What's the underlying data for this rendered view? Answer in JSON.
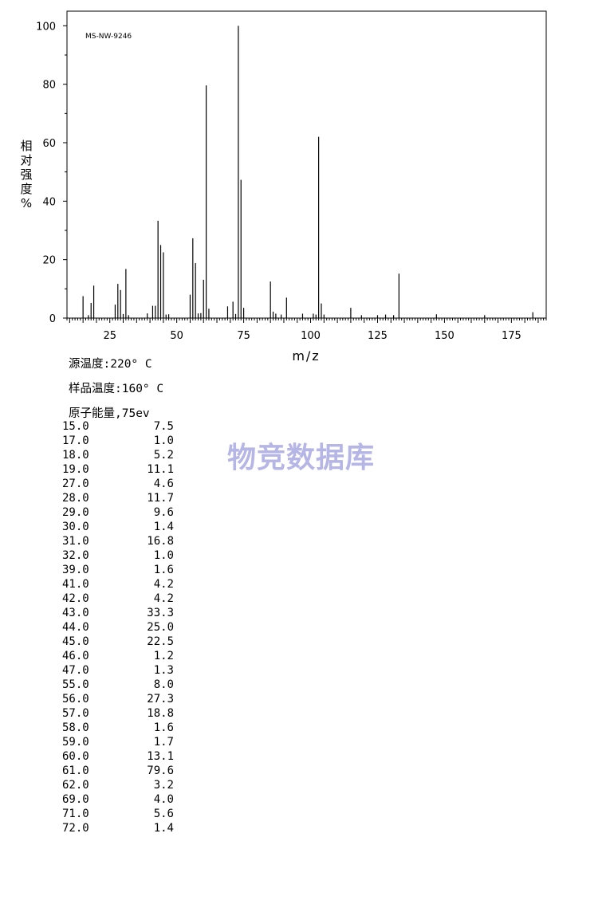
{
  "chart_data": {
    "type": "bar",
    "annotation": "MS-NW-9246",
    "xlabel": "m/z",
    "ylabel": "相对强度%",
    "xlim": [
      9,
      188
    ],
    "ylim": [
      0,
      105
    ],
    "xticks": [
      25,
      50,
      75,
      100,
      125,
      150,
      175
    ],
    "yticks": [
      0,
      20,
      40,
      60,
      80,
      100
    ],
    "grid": false,
    "series": [
      {
        "x": [
          15,
          17,
          18,
          19,
          27,
          28,
          29,
          30,
          31,
          32,
          39,
          41,
          42,
          43,
          44,
          45,
          46,
          47,
          55,
          56,
          57,
          58,
          59,
          60,
          61,
          62,
          69,
          71,
          72,
          73,
          74,
          75,
          85,
          86,
          87,
          89,
          91,
          97,
          101,
          102,
          103,
          104,
          105,
          115,
          119,
          125,
          128,
          131,
          133,
          147,
          165,
          183
        ],
        "values": [
          7.5,
          1.0,
          5.2,
          11.1,
          4.6,
          11.7,
          9.6,
          1.4,
          16.8,
          1.0,
          1.6,
          4.2,
          4.2,
          33.3,
          25.0,
          22.5,
          1.2,
          1.3,
          8.0,
          27.3,
          18.8,
          1.6,
          1.7,
          13.1,
          79.6,
          3.2,
          4.0,
          5.6,
          1.4,
          100.0,
          47.3,
          3.5,
          12.5,
          2.2,
          1.5,
          1.2,
          7.0,
          1.5,
          1.5,
          1.2,
          62.0,
          5.0,
          1.2,
          3.5,
          1.0,
          1.0,
          1.2,
          1.0,
          15.2,
          1.3,
          1.0,
          2.0
        ]
      }
    ]
  },
  "conditions": {
    "source_temp": "源温度:220° C",
    "sample_temp": "样品温度:160° C",
    "electron_energy": "原子能量,75ev"
  },
  "peak_table": [
    {
      "mz": "15.0",
      "abundance": "7.5"
    },
    {
      "mz": "17.0",
      "abundance": "1.0"
    },
    {
      "mz": "18.0",
      "abundance": "5.2"
    },
    {
      "mz": "19.0",
      "abundance": "11.1"
    },
    {
      "mz": "27.0",
      "abundance": "4.6"
    },
    {
      "mz": "28.0",
      "abundance": "11.7"
    },
    {
      "mz": "29.0",
      "abundance": "9.6"
    },
    {
      "mz": "30.0",
      "abundance": "1.4"
    },
    {
      "mz": "31.0",
      "abundance": "16.8"
    },
    {
      "mz": "32.0",
      "abundance": "1.0"
    },
    {
      "mz": "39.0",
      "abundance": "1.6"
    },
    {
      "mz": "41.0",
      "abundance": "4.2"
    },
    {
      "mz": "42.0",
      "abundance": "4.2"
    },
    {
      "mz": "43.0",
      "abundance": "33.3"
    },
    {
      "mz": "44.0",
      "abundance": "25.0"
    },
    {
      "mz": "45.0",
      "abundance": "22.5"
    },
    {
      "mz": "46.0",
      "abundance": "1.2"
    },
    {
      "mz": "47.0",
      "abundance": "1.3"
    },
    {
      "mz": "55.0",
      "abundance": "8.0"
    },
    {
      "mz": "56.0",
      "abundance": "27.3"
    },
    {
      "mz": "57.0",
      "abundance": "18.8"
    },
    {
      "mz": "58.0",
      "abundance": "1.6"
    },
    {
      "mz": "59.0",
      "abundance": "1.7"
    },
    {
      "mz": "60.0",
      "abundance": "13.1"
    },
    {
      "mz": "61.0",
      "abundance": "79.6"
    },
    {
      "mz": "62.0",
      "abundance": "3.2"
    },
    {
      "mz": "69.0",
      "abundance": "4.0"
    },
    {
      "mz": "71.0",
      "abundance": "5.6"
    },
    {
      "mz": "72.0",
      "abundance": "1.4"
    }
  ],
  "watermark": "物竞数据库"
}
